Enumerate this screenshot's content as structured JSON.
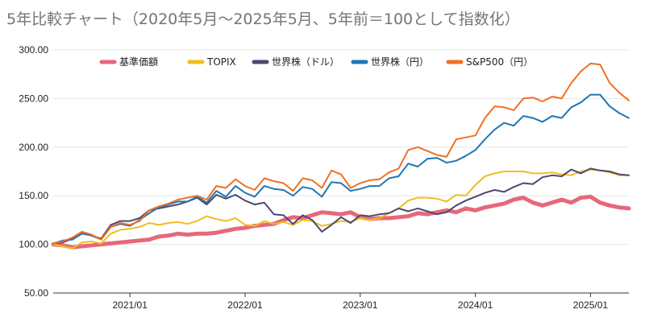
{
  "chart_data": {
    "type": "line",
    "title": "5年比較チャート（2020年5月〜2025年5月、5年前＝100として指数化）",
    "xlabel": "",
    "ylabel": "",
    "ylim": [
      50,
      300
    ],
    "y_ticks": [
      "50.00",
      "100.00",
      "150.00",
      "200.00",
      "250.00",
      "300.00"
    ],
    "x_ticks": [
      {
        "label": "2021/01",
        "date": "2021-01"
      },
      {
        "label": "2022/01",
        "date": "2022-01"
      },
      {
        "label": "2023/01",
        "date": "2023-01"
      },
      {
        "label": "2024/01",
        "date": "2024-01"
      },
      {
        "label": "2025/01",
        "date": "2025-01"
      }
    ],
    "x": [
      "2020-05",
      "2020-06",
      "2020-07",
      "2020-08",
      "2020-09",
      "2020-10",
      "2020-11",
      "2020-12",
      "2021-01",
      "2021-02",
      "2021-03",
      "2021-04",
      "2021-05",
      "2021-06",
      "2021-07",
      "2021-08",
      "2021-09",
      "2021-10",
      "2021-11",
      "2021-12",
      "2022-01",
      "2022-02",
      "2022-03",
      "2022-04",
      "2022-05",
      "2022-06",
      "2022-07",
      "2022-08",
      "2022-09",
      "2022-10",
      "2022-11",
      "2022-12",
      "2023-01",
      "2023-02",
      "2023-03",
      "2023-04",
      "2023-05",
      "2023-06",
      "2023-07",
      "2023-08",
      "2023-09",
      "2023-10",
      "2023-11",
      "2023-12",
      "2024-01",
      "2024-02",
      "2024-03",
      "2024-04",
      "2024-05",
      "2024-06",
      "2024-07",
      "2024-08",
      "2024-09",
      "2024-10",
      "2024-11",
      "2024-12",
      "2025-01",
      "2025-02",
      "2025-03",
      "2025-04",
      "2025-05"
    ],
    "legend_position": "top",
    "grid": true,
    "series": [
      {
        "name": "基準価額",
        "color": "#e8677a",
        "width": 5,
        "values": [
          100,
          99,
          97,
          98,
          99,
          100,
          101,
          102,
          103,
          104,
          105,
          108,
          109,
          111,
          110,
          111,
          111,
          112,
          114,
          116,
          117,
          119,
          120,
          121,
          125,
          128,
          127,
          130,
          133,
          132,
          131,
          133,
          128,
          126,
          127,
          127,
          128,
          129,
          132,
          131,
          133,
          135,
          133,
          137,
          135,
          138,
          140,
          142,
          146,
          148,
          143,
          140,
          143,
          146,
          143,
          148,
          149,
          143,
          140,
          138,
          137
        ]
      },
      {
        "name": "TOPIX",
        "color": "#f2bd1d",
        "width": 2,
        "values": [
          100,
          98,
          96,
          102,
          103,
          101,
          111,
          115,
          116,
          118,
          122,
          120,
          122,
          123,
          121,
          124,
          129,
          126,
          124,
          127,
          120,
          119,
          124,
          121,
          123,
          120,
          125,
          124,
          119,
          121,
          124,
          123,
          127,
          125,
          127,
          132,
          137,
          145,
          148,
          148,
          147,
          144,
          151,
          150,
          161,
          170,
          173,
          175,
          175,
          175,
          173,
          173,
          174,
          172,
          171,
          175,
          177,
          176,
          174,
          171,
          171
        ]
      },
      {
        "name": "世界株（ドル）",
        "color": "#4d4770",
        "width": 2,
        "values": [
          101,
          102,
          106,
          113,
          109,
          106,
          120,
          124,
          124,
          127,
          135,
          137,
          139,
          141,
          144,
          148,
          141,
          151,
          147,
          151,
          145,
          141,
          143,
          131,
          130,
          121,
          130,
          125,
          113,
          120,
          128,
          122,
          130,
          129,
          131,
          132,
          137,
          134,
          137,
          134,
          131,
          133,
          140,
          145,
          149,
          153,
          156,
          154,
          159,
          163,
          162,
          169,
          171,
          170,
          177,
          173,
          178,
          176,
          175,
          172,
          171
        ]
      },
      {
        "name": "世界株（円）",
        "color": "#1f77b4",
        "width": 2,
        "values": [
          101,
          104,
          105,
          111,
          109,
          105,
          118,
          121,
          119,
          125,
          132,
          138,
          141,
          144,
          144,
          149,
          143,
          155,
          149,
          160,
          153,
          149,
          160,
          157,
          156,
          150,
          159,
          157,
          149,
          164,
          163,
          155,
          157,
          160,
          160,
          168,
          170,
          183,
          180,
          188,
          189,
          184,
          186,
          191,
          197,
          208,
          218,
          225,
          222,
          232,
          230,
          226,
          232,
          230,
          241,
          246,
          254,
          254,
          242,
          235,
          230
        ]
      },
      {
        "name": "S&P500（円）",
        "color": "#f07022",
        "width": 2,
        "values": [
          101,
          103,
          107,
          113,
          110,
          105,
          118,
          122,
          120,
          124,
          135,
          139,
          142,
          146,
          148,
          150,
          146,
          160,
          158,
          167,
          160,
          156,
          168,
          165,
          163,
          155,
          168,
          166,
          158,
          176,
          172,
          158,
          163,
          166,
          167,
          174,
          178,
          197,
          200,
          196,
          192,
          190,
          208,
          210,
          212,
          230,
          242,
          241,
          238,
          250,
          251,
          247,
          252,
          250,
          266,
          278,
          286,
          285,
          266,
          256,
          248
        ]
      }
    ]
  }
}
